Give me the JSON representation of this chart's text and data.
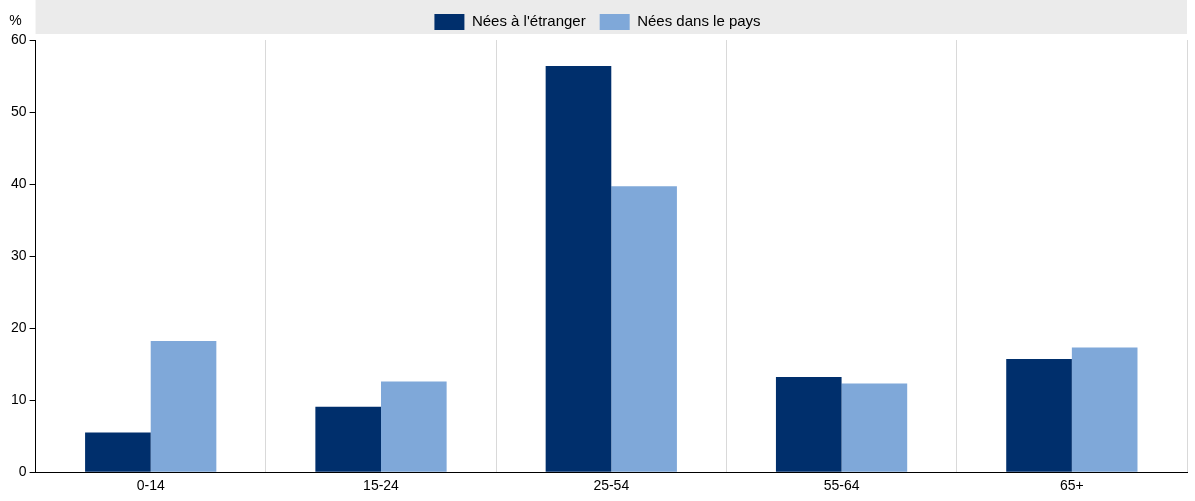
{
  "chart_data": {
    "type": "bar",
    "ylabel": "%",
    "categories": [
      "0-14",
      "15-24",
      "25-54",
      "55-64",
      "65+"
    ],
    "series": [
      {
        "name": "Nées à l'étranger",
        "color": "#002f6c",
        "values": [
          5.5,
          9.1,
          56.4,
          13.2,
          15.7
        ]
      },
      {
        "name": "Nées dans le pays",
        "color": "#7fa8d9",
        "values": [
          18.2,
          12.6,
          39.7,
          12.3,
          17.3
        ]
      }
    ],
    "ylim": [
      0,
      60
    ],
    "yticks": [
      0,
      10,
      20,
      30,
      40,
      50,
      60
    ],
    "grid": "x",
    "legend": "top"
  }
}
